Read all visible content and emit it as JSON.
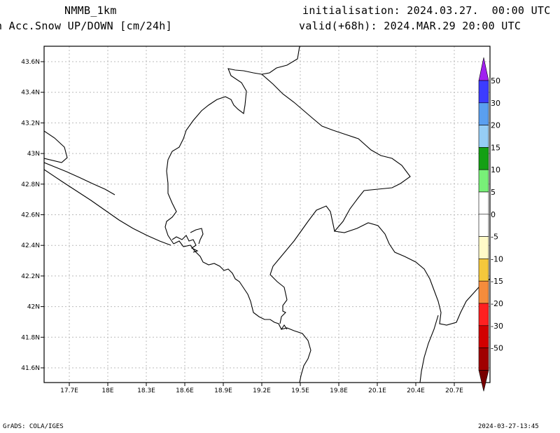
{
  "header": {
    "model": "NMMB_1km",
    "field": "n Acc.Snow UP/DOWN [cm/24h]",
    "init": "initialisation: 2024.03.27.  00:00 UTC",
    "valid": "valid(+68h): 2024.MAR.29 20:00 UTC"
  },
  "footer": {
    "left": "GrADS: COLA/IGES",
    "right": "2024-03-27-13:45"
  },
  "axes": {
    "lat_labels": [
      "43.6N",
      "43.4N",
      "43.2N",
      "43N",
      "42.8N",
      "42.6N",
      "42.4N",
      "42.2N",
      "42N",
      "41.8N",
      "41.6N"
    ],
    "lon_labels": [
      "17.7E",
      "18E",
      "18.3E",
      "18.6E",
      "18.9E",
      "19.2E",
      "19.5E",
      "19.8E",
      "20.1E",
      "20.4E",
      "20.7E"
    ]
  },
  "colorbar": {
    "labels": [
      "50",
      "30",
      "20",
      "15",
      "10",
      "5",
      "0",
      "-5",
      "-10",
      "-15",
      "-20",
      "-30",
      "-50"
    ],
    "colors": {
      "top_arrow": "#a020f0",
      "segments": [
        "#3c3cff",
        "#5a9ff0",
        "#96cdf5",
        "#14a014",
        "#78f078",
        "#ffffff",
        "#ffffff",
        "#fffac8",
        "#f5c83c",
        "#f58c3c",
        "#ff2020",
        "#d20000",
        "#a00000"
      ],
      "bottom_arrow": "#780000"
    }
  },
  "map": {
    "border_color": "#000000",
    "grid_color": "#bbbbbb"
  }
}
